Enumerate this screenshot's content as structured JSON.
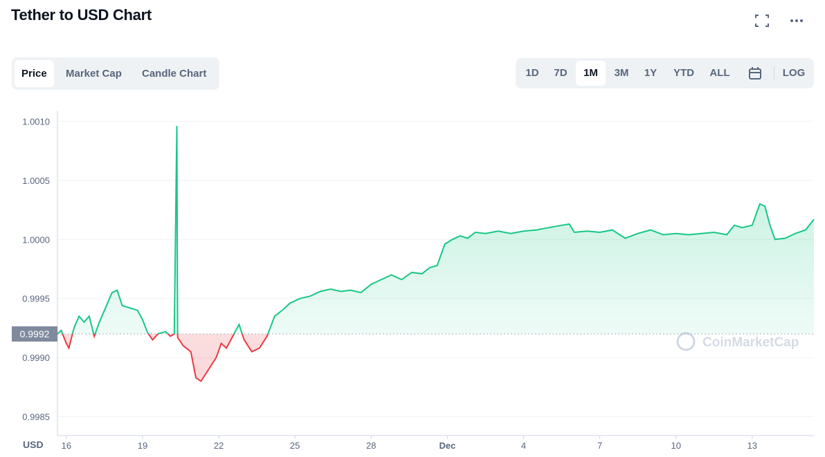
{
  "tabs": [
    "Price",
    "Market Cap",
    "Candle Chart"
  ],
  "active_tab": 0,
  "ranges": [
    "1D",
    "7D",
    "1M",
    "3M",
    "1Y",
    "YTD",
    "ALL"
  ],
  "active_range": 2,
  "log_button": "LOG",
  "chart_data": {
    "type": "line",
    "title": "Tether to USD Chart",
    "y_axis_label": "USD",
    "watermark": "CoinMarketCap",
    "color_up": "#16c784",
    "color_down": "#ea3943",
    "reference_value": 0.9992,
    "grid": true,
    "xlim": [
      15.65,
      45.43
    ],
    "ylim": [
      0.99834,
      1.00109
    ],
    "xticks": [
      16,
      19,
      22,
      25,
      28,
      {
        "value": 31,
        "label": "Dec"
      },
      {
        "value": 34,
        "label": "4"
      },
      {
        "value": 37,
        "label": "7"
      },
      {
        "value": 40,
        "label": "10"
      },
      {
        "value": 43,
        "label": "13"
      }
    ],
    "yticks": [
      {
        "value": 1.001,
        "label": "1.0010"
      },
      1.0005,
      {
        "value": 1,
        "label": "1.0000"
      },
      0.9995,
      {
        "value": 0.999,
        "label": "0.9990"
      },
      0.9985
    ],
    "x": [
      15.65,
      15.8,
      16.0,
      16.1,
      16.3,
      16.5,
      16.7,
      16.9,
      17.1,
      17.3,
      17.6,
      17.8,
      18.0,
      18.2,
      18.5,
      18.8,
      19.0,
      19.2,
      19.4,
      19.6,
      19.9,
      20.1,
      20.25,
      20.35,
      20.38,
      20.6,
      20.9,
      21.1,
      21.3,
      21.6,
      21.9,
      22.1,
      22.3,
      22.6,
      22.8,
      23.0,
      23.3,
      23.6,
      23.9,
      24.2,
      24.5,
      24.8,
      25.2,
      25.6,
      26.0,
      26.4,
      26.8,
      27.2,
      27.6,
      28.0,
      28.4,
      28.8,
      29.2,
      29.6,
      30.0,
      30.3,
      30.6,
      30.9,
      31.2,
      31.5,
      31.8,
      32.1,
      32.5,
      33.0,
      33.5,
      34.0,
      34.5,
      35.0,
      35.5,
      35.8,
      36.0,
      36.5,
      37.0,
      37.5,
      38.0,
      38.5,
      39.0,
      39.5,
      40.0,
      40.5,
      41.0,
      41.5,
      42.0,
      42.3,
      42.6,
      43.0,
      43.3,
      43.5,
      43.7,
      43.9,
      44.3,
      44.7,
      45.1,
      45.43
    ],
    "values": [
      0.9992,
      0.99923,
      0.99912,
      0.99908,
      0.99925,
      0.99935,
      0.9993,
      0.99935,
      0.99918,
      0.9993,
      0.99945,
      0.99955,
      0.99957,
      0.99944,
      0.99942,
      0.9994,
      0.99932,
      0.99921,
      0.99915,
      0.9992,
      0.99922,
      0.99918,
      0.9992,
      1.00096,
      0.99917,
      0.9991,
      0.99905,
      0.99883,
      0.9988,
      0.9989,
      0.999,
      0.99912,
      0.99908,
      0.9992,
      0.99928,
      0.99915,
      0.99905,
      0.99908,
      0.99918,
      0.99935,
      0.9994,
      0.99946,
      0.9995,
      0.99952,
      0.99956,
      0.99958,
      0.99956,
      0.99957,
      0.99955,
      0.99962,
      0.99966,
      0.9997,
      0.99966,
      0.99972,
      0.99971,
      0.99976,
      0.99978,
      0.99996,
      1.0,
      1.00003,
      1.00001,
      1.00006,
      1.00005,
      1.00007,
      1.00005,
      1.00007,
      1.00008,
      1.0001,
      1.00012,
      1.00013,
      1.00006,
      1.00007,
      1.00006,
      1.00008,
      1.00001,
      1.00005,
      1.00008,
      1.00004,
      1.00005,
      1.00004,
      1.00005,
      1.00006,
      1.00004,
      1.00012,
      1.0001,
      1.00012,
      1.0003,
      1.00028,
      1.00012,
      1.0,
      1.00001,
      1.00005,
      1.00008,
      1.00017
    ]
  }
}
